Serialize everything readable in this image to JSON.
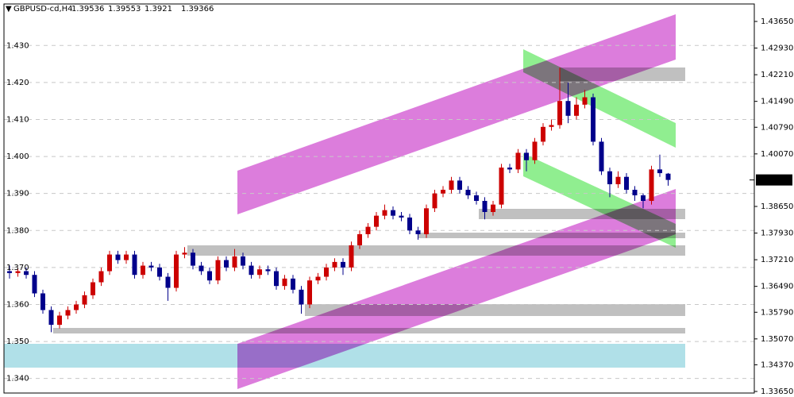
{
  "chart_data": {
    "type": "candlestick",
    "symbol": "GBPUSD-cd,H4",
    "up_color": "#cc0000",
    "down_color": "#00008b",
    "ylim": [
      1.33607,
      1.44122
    ],
    "yticks": [
      {
        "value": 1.34,
        "label": "1.340"
      },
      {
        "value": 1.35,
        "label": "1.350"
      },
      {
        "value": 1.36,
        "label": "1.360"
      },
      {
        "value": 1.37,
        "label": "1.370"
      },
      {
        "value": 1.38,
        "label": "1.380"
      },
      {
        "value": 1.39,
        "label": "1.390"
      },
      {
        "value": 1.4,
        "label": "1.400"
      },
      {
        "value": 1.41,
        "label": "1.410"
      },
      {
        "value": 1.42,
        "label": "1.420"
      },
      {
        "value": 1.43,
        "label": "1.430"
      }
    ],
    "y2ticks": [
      {
        "value": 1.3365,
        "label": "1.33650"
      },
      {
        "value": 1.3437,
        "label": "1.34370"
      },
      {
        "value": 1.3507,
        "label": "1.35070"
      },
      {
        "value": 1.3579,
        "label": "1.35790"
      },
      {
        "value": 1.3649,
        "label": "1.36490"
      },
      {
        "value": 1.3721,
        "label": "1.37210"
      },
      {
        "value": 1.3793,
        "label": "1.37930"
      },
      {
        "value": 1.3865,
        "label": "1.38650"
      },
      {
        "value": 1.4007,
        "label": "1.40070"
      },
      {
        "value": 1.4079,
        "label": "1.40790"
      },
      {
        "value": 1.4149,
        "label": "1.41490"
      },
      {
        "value": 1.4221,
        "label": "1.42210"
      },
      {
        "value": 1.4293,
        "label": "1.42930"
      },
      {
        "value": 1.4365,
        "label": "1.43650"
      }
    ],
    "grid": true,
    "open": [
      1.369,
      1.3685,
      1.369,
      1.368,
      1.363,
      1.3585,
      1.3545,
      1.357,
      1.3585,
      1.36,
      1.3625,
      1.366,
      1.369,
      1.3735,
      1.372,
      1.3735,
      1.368,
      1.3705,
      1.37,
      1.3675,
      1.3645,
      1.3735,
      1.374,
      1.3705,
      1.369,
      1.3665,
      1.372,
      1.37,
      1.373,
      1.3705,
      1.368,
      1.3695,
      1.369,
      1.365,
      1.367,
      1.364,
      1.36,
      1.3665,
      1.3675,
      1.37,
      1.3715,
      1.37,
      1.376,
      1.379,
      1.381,
      1.384,
      1.3855,
      1.384,
      1.3835,
      1.38,
      1.379,
      1.386,
      1.39,
      1.391,
      1.3935,
      1.391,
      1.3895,
      1.388,
      1.385,
      1.387,
      1.397,
      1.3965,
      1.401,
      1.399,
      1.404,
      1.408,
      1.4085,
      1.415,
      1.411,
      1.414,
      1.416,
      1.404,
      1.396,
      1.3925,
      1.3945,
      1.391,
      1.3895,
      1.388,
      1.3965,
      1.39536
    ],
    "high": [
      1.3705,
      1.37,
      1.37,
      1.369,
      1.364,
      1.3595,
      1.358,
      1.3595,
      1.361,
      1.3635,
      1.367,
      1.37,
      1.3745,
      1.3745,
      1.3745,
      1.3745,
      1.3715,
      1.3715,
      1.371,
      1.3685,
      1.3745,
      1.3755,
      1.375,
      1.3715,
      1.37,
      1.373,
      1.373,
      1.375,
      1.374,
      1.3715,
      1.3705,
      1.3705,
      1.37,
      1.368,
      1.368,
      1.365,
      1.3675,
      1.3685,
      1.371,
      1.3725,
      1.3725,
      1.377,
      1.38,
      1.382,
      1.385,
      1.387,
      1.3865,
      1.385,
      1.3845,
      1.381,
      1.387,
      1.391,
      1.392,
      1.3945,
      1.3945,
      1.392,
      1.3905,
      1.389,
      1.388,
      1.398,
      1.398,
      1.402,
      1.402,
      1.405,
      1.409,
      1.41,
      1.424,
      1.42,
      1.416,
      1.418,
      1.417,
      1.405,
      1.397,
      1.396,
      1.3955,
      1.392,
      1.39,
      1.3975,
      1.4005,
      1.39553
    ],
    "low": [
      1.367,
      1.3675,
      1.367,
      1.362,
      1.3575,
      1.3525,
      1.3535,
      1.356,
      1.3575,
      1.359,
      1.3615,
      1.365,
      1.368,
      1.371,
      1.371,
      1.367,
      1.367,
      1.369,
      1.3665,
      1.361,
      1.3635,
      1.3725,
      1.3695,
      1.368,
      1.3655,
      1.3655,
      1.369,
      1.369,
      1.3695,
      1.367,
      1.367,
      1.368,
      1.364,
      1.364,
      1.363,
      1.3575,
      1.359,
      1.3655,
      1.3665,
      1.369,
      1.368,
      1.369,
      1.375,
      1.378,
      1.38,
      1.383,
      1.383,
      1.3825,
      1.379,
      1.3775,
      1.378,
      1.385,
      1.389,
      1.39,
      1.39,
      1.3885,
      1.387,
      1.383,
      1.384,
      1.386,
      1.3955,
      1.3955,
      1.396,
      1.398,
      1.403,
      1.407,
      1.4075,
      1.409,
      1.41,
      1.413,
      1.403,
      1.395,
      1.389,
      1.3915,
      1.39,
      1.388,
      1.386,
      1.387,
      1.3945,
      1.3921
    ],
    "close": [
      1.3685,
      1.369,
      1.368,
      1.363,
      1.3585,
      1.3545,
      1.357,
      1.3585,
      1.36,
      1.3625,
      1.366,
      1.369,
      1.3735,
      1.372,
      1.3735,
      1.368,
      1.3705,
      1.37,
      1.3675,
      1.3645,
      1.3735,
      1.374,
      1.3705,
      1.369,
      1.3665,
      1.372,
      1.37,
      1.373,
      1.3705,
      1.368,
      1.3695,
      1.369,
      1.365,
      1.367,
      1.364,
      1.36,
      1.3665,
      1.3675,
      1.37,
      1.3715,
      1.37,
      1.376,
      1.379,
      1.381,
      1.384,
      1.3855,
      1.384,
      1.3835,
      1.38,
      1.379,
      1.386,
      1.39,
      1.391,
      1.3935,
      1.391,
      1.3895,
      1.388,
      1.385,
      1.387,
      1.397,
      1.3965,
      1.401,
      1.399,
      1.404,
      1.408,
      1.4085,
      1.415,
      1.411,
      1.414,
      1.416,
      1.404,
      1.396,
      1.3925,
      1.3945,
      1.391,
      1.3895,
      1.388,
      1.3965,
      1.3955,
      1.39366
    ]
  }
}
